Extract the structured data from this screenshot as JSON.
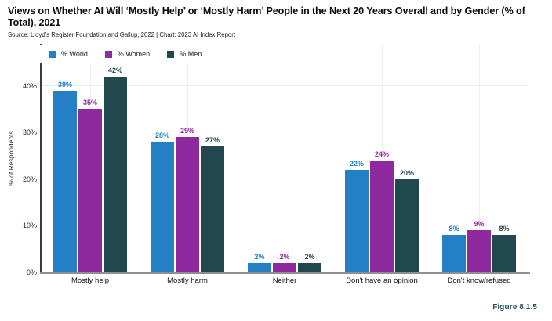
{
  "header": {
    "title": "Views on Whether AI Will ‘Mostly Help’ or ‘Mostly Harm’ People in the Next 20 Years Overall and by Gender (% of Total), 2021",
    "source": "Source: Lloyd's Register Foundation and Gallup, 2022 | Chart: 2023 AI Index Report"
  },
  "figure_label": "Figure 8.1.5",
  "chart_data": {
    "type": "bar",
    "title": "Views on Whether AI Will ‘Mostly Help’ or ‘Mostly Harm’ People in the Next 20 Years Overall and by Gender (% of Total), 2021",
    "categories": [
      "Mostly help",
      "Mostly harm",
      "Neither",
      "Don't have an opinion",
      "Don't know/refused"
    ],
    "series": [
      {
        "name": "% World",
        "color": "#2380c4",
        "values": [
          39,
          28,
          2,
          22,
          8
        ]
      },
      {
        "name": "% Women",
        "color": "#8e2a9e",
        "values": [
          35,
          29,
          2,
          24,
          9
        ]
      },
      {
        "name": "% Men",
        "color": "#21474f",
        "values": [
          42,
          27,
          2,
          20,
          8
        ]
      }
    ],
    "xlabel": "",
    "ylabel": "% of Respondents",
    "y_ticks": [
      "0%",
      "10%",
      "20%",
      "30%",
      "40%"
    ],
    "ylim": [
      0,
      49
    ],
    "value_suffix": "%",
    "grid": true,
    "legend_position": "top-left"
  }
}
